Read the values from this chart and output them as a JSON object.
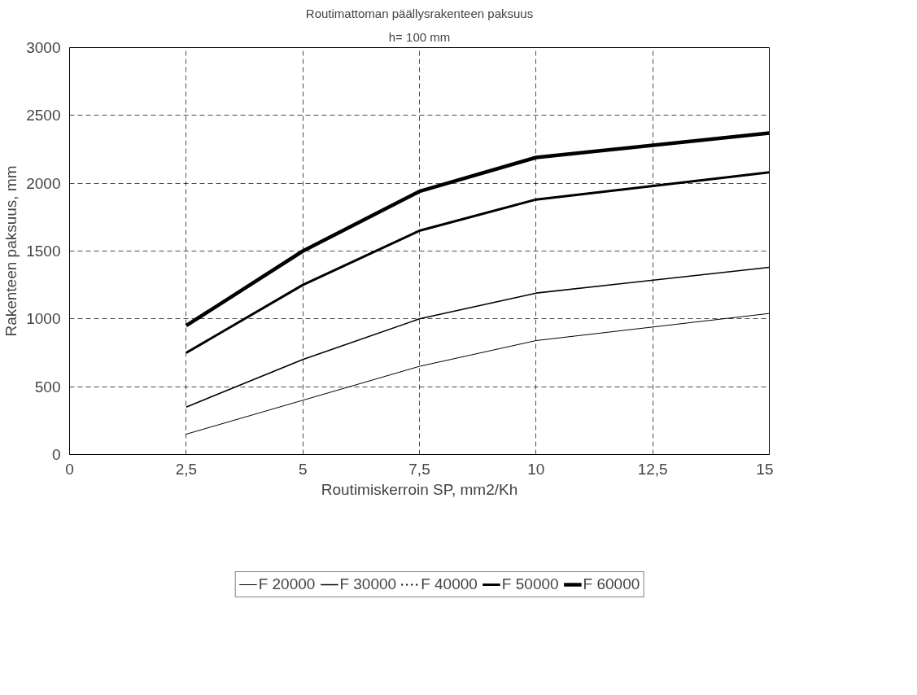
{
  "chart_data": {
    "type": "line",
    "title": "Routimattoman päällysrakenteen paksuus",
    "subtitle": "h= 100 mm",
    "xlabel": "Routimiskerroin SP, mm2/Kh",
    "ylabel": "Rakenteen paksuus, mm",
    "x": [
      2.5,
      5,
      7.5,
      10,
      15
    ],
    "series": [
      {
        "name": "F 20000",
        "color": "#000000",
        "values": [
          150,
          400,
          650,
          840,
          1040
        ]
      },
      {
        "name": "F 30000",
        "color": "#000000",
        "values": [
          350,
          700,
          1000,
          1190,
          1380
        ]
      },
      {
        "name": "F 40000",
        "color": "#000000",
        "line_style": "dotted",
        "values": [
          null,
          null,
          null,
          null,
          null
        ]
      },
      {
        "name": "F 50000",
        "color": "#000000",
        "values": [
          750,
          1250,
          1650,
          1880,
          2080
        ]
      },
      {
        "name": "F 60000",
        "color": "#000000",
        "values": [
          950,
          1500,
          1940,
          2190,
          2370
        ]
      }
    ],
    "xlim": [
      0,
      15
    ],
    "xticks": [
      0,
      {
        "value": 2.5,
        "label": "2,5"
      },
      5,
      {
        "value": 7.5,
        "label": "7,5"
      },
      10,
      {
        "value": 12.5,
        "label": "12,5"
      },
      15
    ],
    "ylim": [
      0,
      3000
    ],
    "yticks": [
      0,
      500,
      1000,
      1500,
      2000,
      2500,
      3000
    ],
    "grid": true,
    "legend": "bottom",
    "marker": "none",
    "line_style": "solid"
  }
}
